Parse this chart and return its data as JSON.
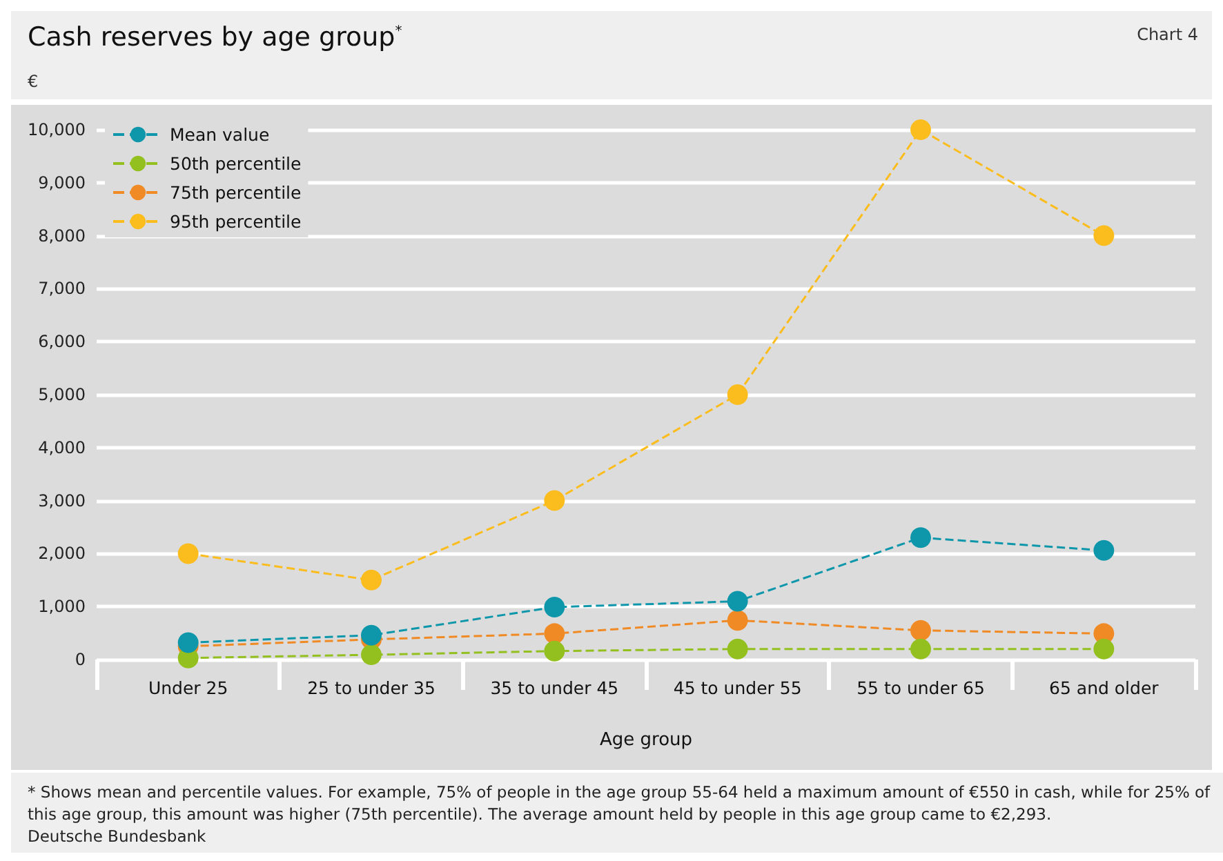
{
  "chart_data": {
    "type": "line",
    "title": "Cash reserves by age group$^{*}$",
    "ylabel": "€",
    "xlabel": "Age group",
    "annotations": [
      "Chart 4",
      "* Shows mean and percentile values. For example, 75% of people in the age group 55-64 held a maximum amount of €550 in cash, while for 25% of this age group, this amount was higher (75th percentile). The average amount held by people in this age group came to €2,293.",
      "Deutsche Bundesbank"
    ],
    "categories": [
      "Under 25",
      "25 to under 35",
      "35 to under 45",
      "45 to under 55",
      "55 to under 65",
      "65 and older"
    ],
    "series": [
      {
        "name": "Mean value",
        "color": "#0e97aa",
        "values": [
          320,
          460,
          990,
          1100,
          2300,
          2060
        ]
      },
      {
        "name": "50th percentile",
        "color": "#93c01f",
        "values": [
          30,
          90,
          160,
          200,
          200,
          200
        ]
      },
      {
        "name": "75th percentile",
        "color": "#f08a24",
        "values": [
          250,
          380,
          490,
          740,
          550,
          490
        ]
      },
      {
        "name": "95th percentile",
        "color": "#fbbd1d",
        "values": [
          2000,
          1500,
          3000,
          5000,
          10000,
          8000
        ]
      }
    ],
    "ylim": [
      0,
      10000
    ],
    "yticks": [
      0,
      {
        "value": 1000,
        "label": "1,000"
      },
      {
        "value": 2000,
        "label": "2,000"
      },
      {
        "value": 3000,
        "label": "3,000"
      },
      {
        "value": 4000,
        "label": "4,000"
      },
      {
        "value": 5000,
        "label": "5,000"
      },
      {
        "value": 6000,
        "label": "6,000"
      },
      {
        "value": 7000,
        "label": "7,000"
      },
      {
        "value": 8000,
        "label": "8,000"
      },
      {
        "value": 9000,
        "label": "9,000"
      },
      {
        "value": 10000,
        "label": "10,000"
      }
    ],
    "grid": "y",
    "legend": "top left",
    "marker": "circle",
    "line_style": "dashed"
  }
}
